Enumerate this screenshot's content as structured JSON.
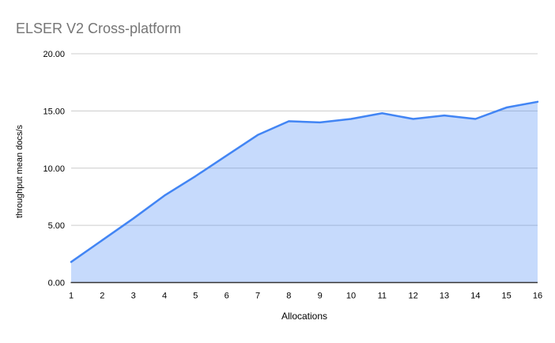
{
  "chart_data": {
    "type": "area",
    "title": "ELSER V2 Cross-platform",
    "xlabel": "Allocations",
    "ylabel": "throughput mean docs/s",
    "categories": [
      "1",
      "2",
      "3",
      "4",
      "5",
      "6",
      "7",
      "8",
      "9",
      "10",
      "11",
      "12",
      "13",
      "14",
      "15",
      "16"
    ],
    "series": [
      {
        "name": "throughput mean docs/s",
        "values": [
          1.8,
          3.7,
          5.6,
          7.6,
          9.3,
          11.1,
          12.9,
          14.1,
          14.0,
          14.3,
          14.8,
          14.3,
          14.6,
          14.3,
          15.3,
          15.8
        ]
      }
    ],
    "xlim": [
      1,
      16
    ],
    "ylim": [
      0,
      20
    ],
    "ytick_values": [
      0,
      5,
      10,
      15,
      20
    ],
    "ytick_labels": [
      "0.00",
      "5.00",
      "10.00",
      "15.00",
      "20.00"
    ],
    "grid": true,
    "legend": "none",
    "colors": {
      "line": "#4285f4",
      "fill": "#4285f4",
      "fill_opacity": 0.3,
      "grid": "#cccccc",
      "axis": "#333333",
      "title_text": "#757575",
      "tick_text": "#000000"
    }
  }
}
